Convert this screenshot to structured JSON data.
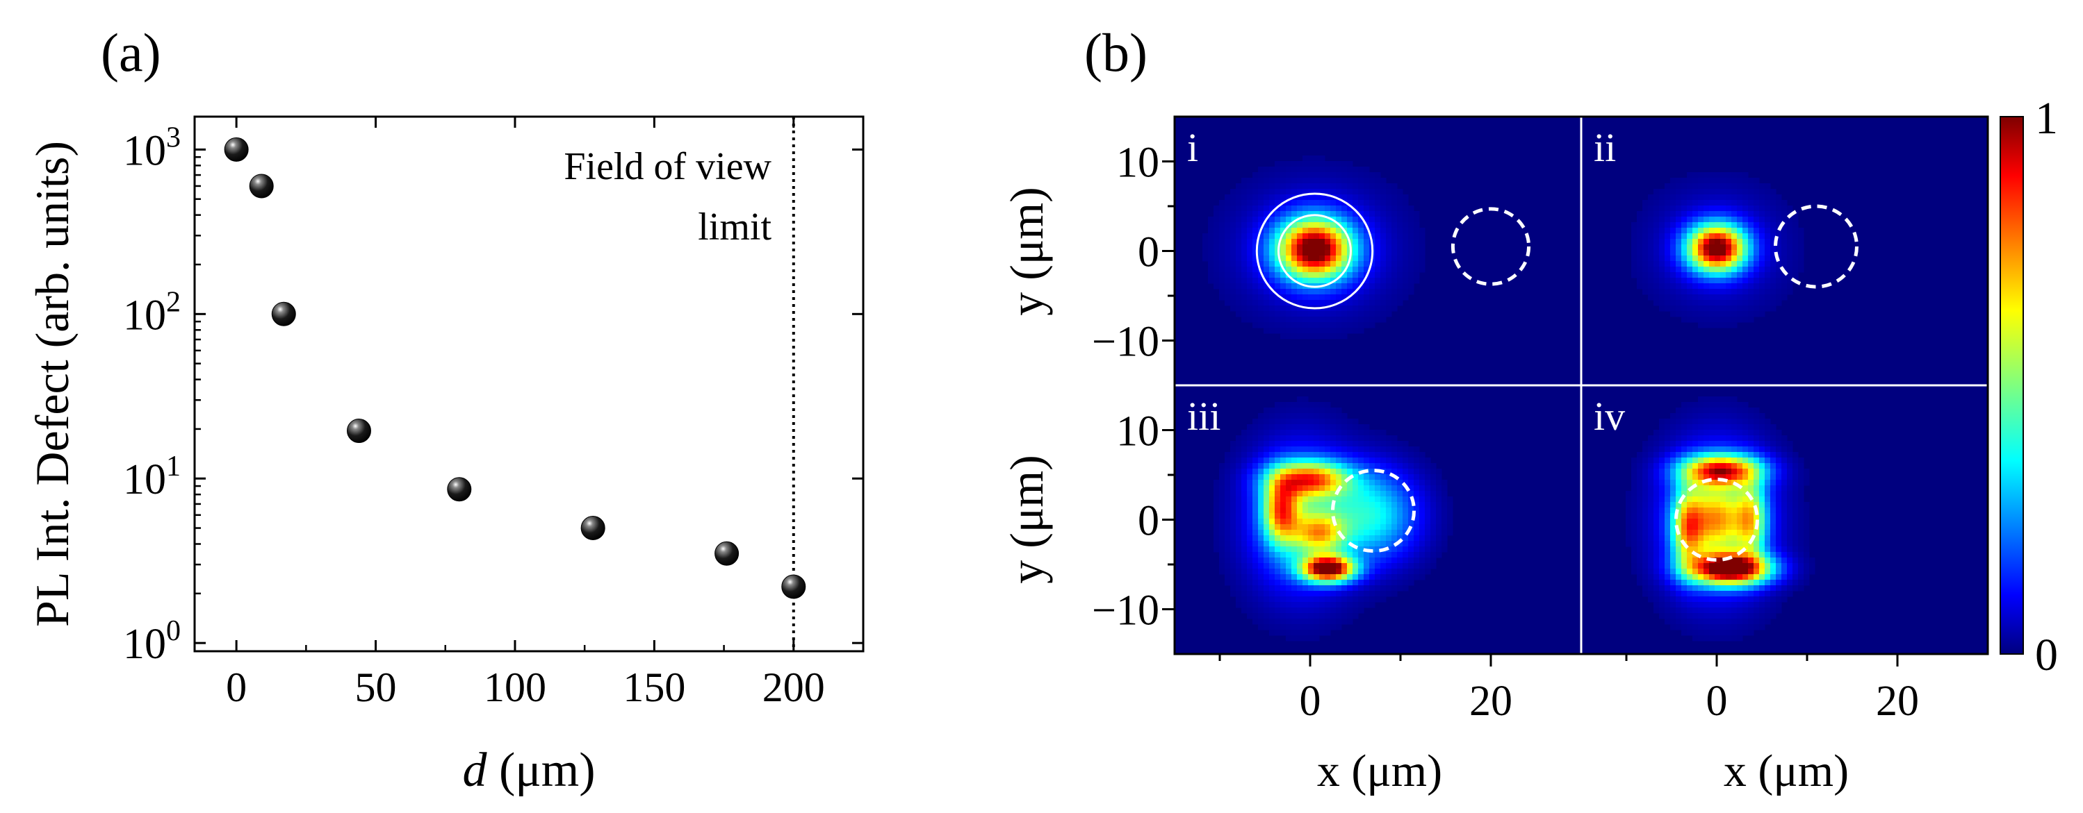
{
  "panel_a_label": "(a)",
  "panel_b_label": "(b)",
  "chart_data": [
    {
      "type": "scatter",
      "id": "panel-a",
      "title": "",
      "ylabel": "PL Int. Defect (arb. units)",
      "xlabel_italic": "d",
      "xlabel_rest": " (μm)",
      "xlim": [
        -15,
        225
      ],
      "ylim_log10": [
        -0.05,
        3.2
      ],
      "yscale": "log",
      "x": [
        0,
        9,
        17,
        44,
        80,
        128,
        176,
        200
      ],
      "y": [
        1000,
        600,
        100,
        19.5,
        8.6,
        5.0,
        3.5,
        2.2
      ],
      "xticks": [
        0,
        50,
        100,
        150,
        200
      ],
      "xtick_labels": [
        "0",
        "50",
        "100",
        "150",
        "200"
      ],
      "yticks_exp": [
        0,
        1,
        2,
        3
      ],
      "ytick_base": "10",
      "ytick_exps": [
        "0",
        "1",
        "2",
        "3"
      ],
      "vline_x": 200,
      "annotation_line1": "Field of view",
      "annotation_line2": "limit"
    },
    {
      "type": "heatmap",
      "id": "panel-b",
      "xlabel": "x (μm)",
      "ylabel": "y (μm)",
      "xlim": [
        -15,
        30
      ],
      "ylim": [
        -15,
        15
      ],
      "xticks": [
        0,
        20
      ],
      "xtick_labels": [
        "0",
        "20"
      ],
      "yticks": [
        10,
        0,
        -10
      ],
      "ytick_labels": [
        "10",
        "0",
        "−10"
      ],
      "colorbar_min": "0",
      "colorbar_max": "1",
      "colormap": "jet",
      "subpanels": [
        {
          "label": "i",
          "spots": [
            {
              "x": 0.5,
              "y": 0.2,
              "sx": 2.8,
              "sy": 2.3,
              "amp": 1.0
            },
            {
              "x": 0.5,
              "y": 0.2,
              "sx": 6.0,
              "sy": 5.0,
              "amp": 0.12
            }
          ],
          "circles": [
            {
              "x": 0.5,
              "y": 0,
              "r": 6.4,
              "style": "solid"
            },
            {
              "x": 0.5,
              "y": 0,
              "r": 4.0,
              "style": "solid"
            },
            {
              "x": 20,
              "y": 0.5,
              "r": 4.2,
              "style": "dashed"
            }
          ]
        },
        {
          "label": "ii",
          "spots": [
            {
              "x": 0,
              "y": 0.3,
              "sx": 2.2,
              "sy": 1.8,
              "amp": 1.0
            },
            {
              "x": 0,
              "y": 0.3,
              "sx": 5.0,
              "sy": 4.5,
              "amp": 0.1
            }
          ],
          "circles": [
            {
              "x": 11,
              "y": 0.5,
              "r": 4.5,
              "style": "dashed"
            }
          ]
        },
        {
          "label": "iii",
          "spots": [
            {
              "x": -1,
              "y": 0,
              "sx": 4.0,
              "sy": 5.5,
              "amp": 0.3
            },
            {
              "x": 0,
              "y": 4.5,
              "sx": 3.0,
              "sy": 1.4,
              "amp": 0.65
            },
            {
              "x": -3.2,
              "y": 1,
              "sx": 1.4,
              "sy": 2.5,
              "amp": 0.6
            },
            {
              "x": 1,
              "y": -1.5,
              "sx": 2.0,
              "sy": 1.6,
              "amp": 0.45
            },
            {
              "x": 2,
              "y": -5.5,
              "sx": 2.0,
              "sy": 1.0,
              "amp": 1.0
            },
            {
              "x": 7,
              "y": 0.5,
              "sx": 3.5,
              "sy": 3.5,
              "amp": 0.35
            }
          ],
          "circles": [
            {
              "x": 7,
              "y": 1,
              "r": 4.5,
              "style": "dashed"
            }
          ]
        },
        {
          "label": "iv",
          "spots": [
            {
              "x": 0,
              "y": 0,
              "sx": 4.0,
              "sy": 5.5,
              "amp": 0.35
            },
            {
              "x": 0,
              "y": 0,
              "sx": 2.0,
              "sy": 2.5,
              "amp": 0.4
            },
            {
              "x": 0.5,
              "y": 5.5,
              "sx": 3.0,
              "sy": 1.2,
              "amp": 0.75
            },
            {
              "x": 1.5,
              "y": -5.5,
              "sx": 3.0,
              "sy": 1.2,
              "amp": 1.0
            },
            {
              "x": -3.2,
              "y": -1,
              "sx": 1.2,
              "sy": 3.0,
              "amp": 0.5
            },
            {
              "x": 3.8,
              "y": 0,
              "sx": 1.2,
              "sy": 3.0,
              "amp": 0.45
            }
          ],
          "circles": [
            {
              "x": 0,
              "y": 0,
              "r": 4.5,
              "style": "dashed"
            }
          ]
        }
      ]
    }
  ]
}
